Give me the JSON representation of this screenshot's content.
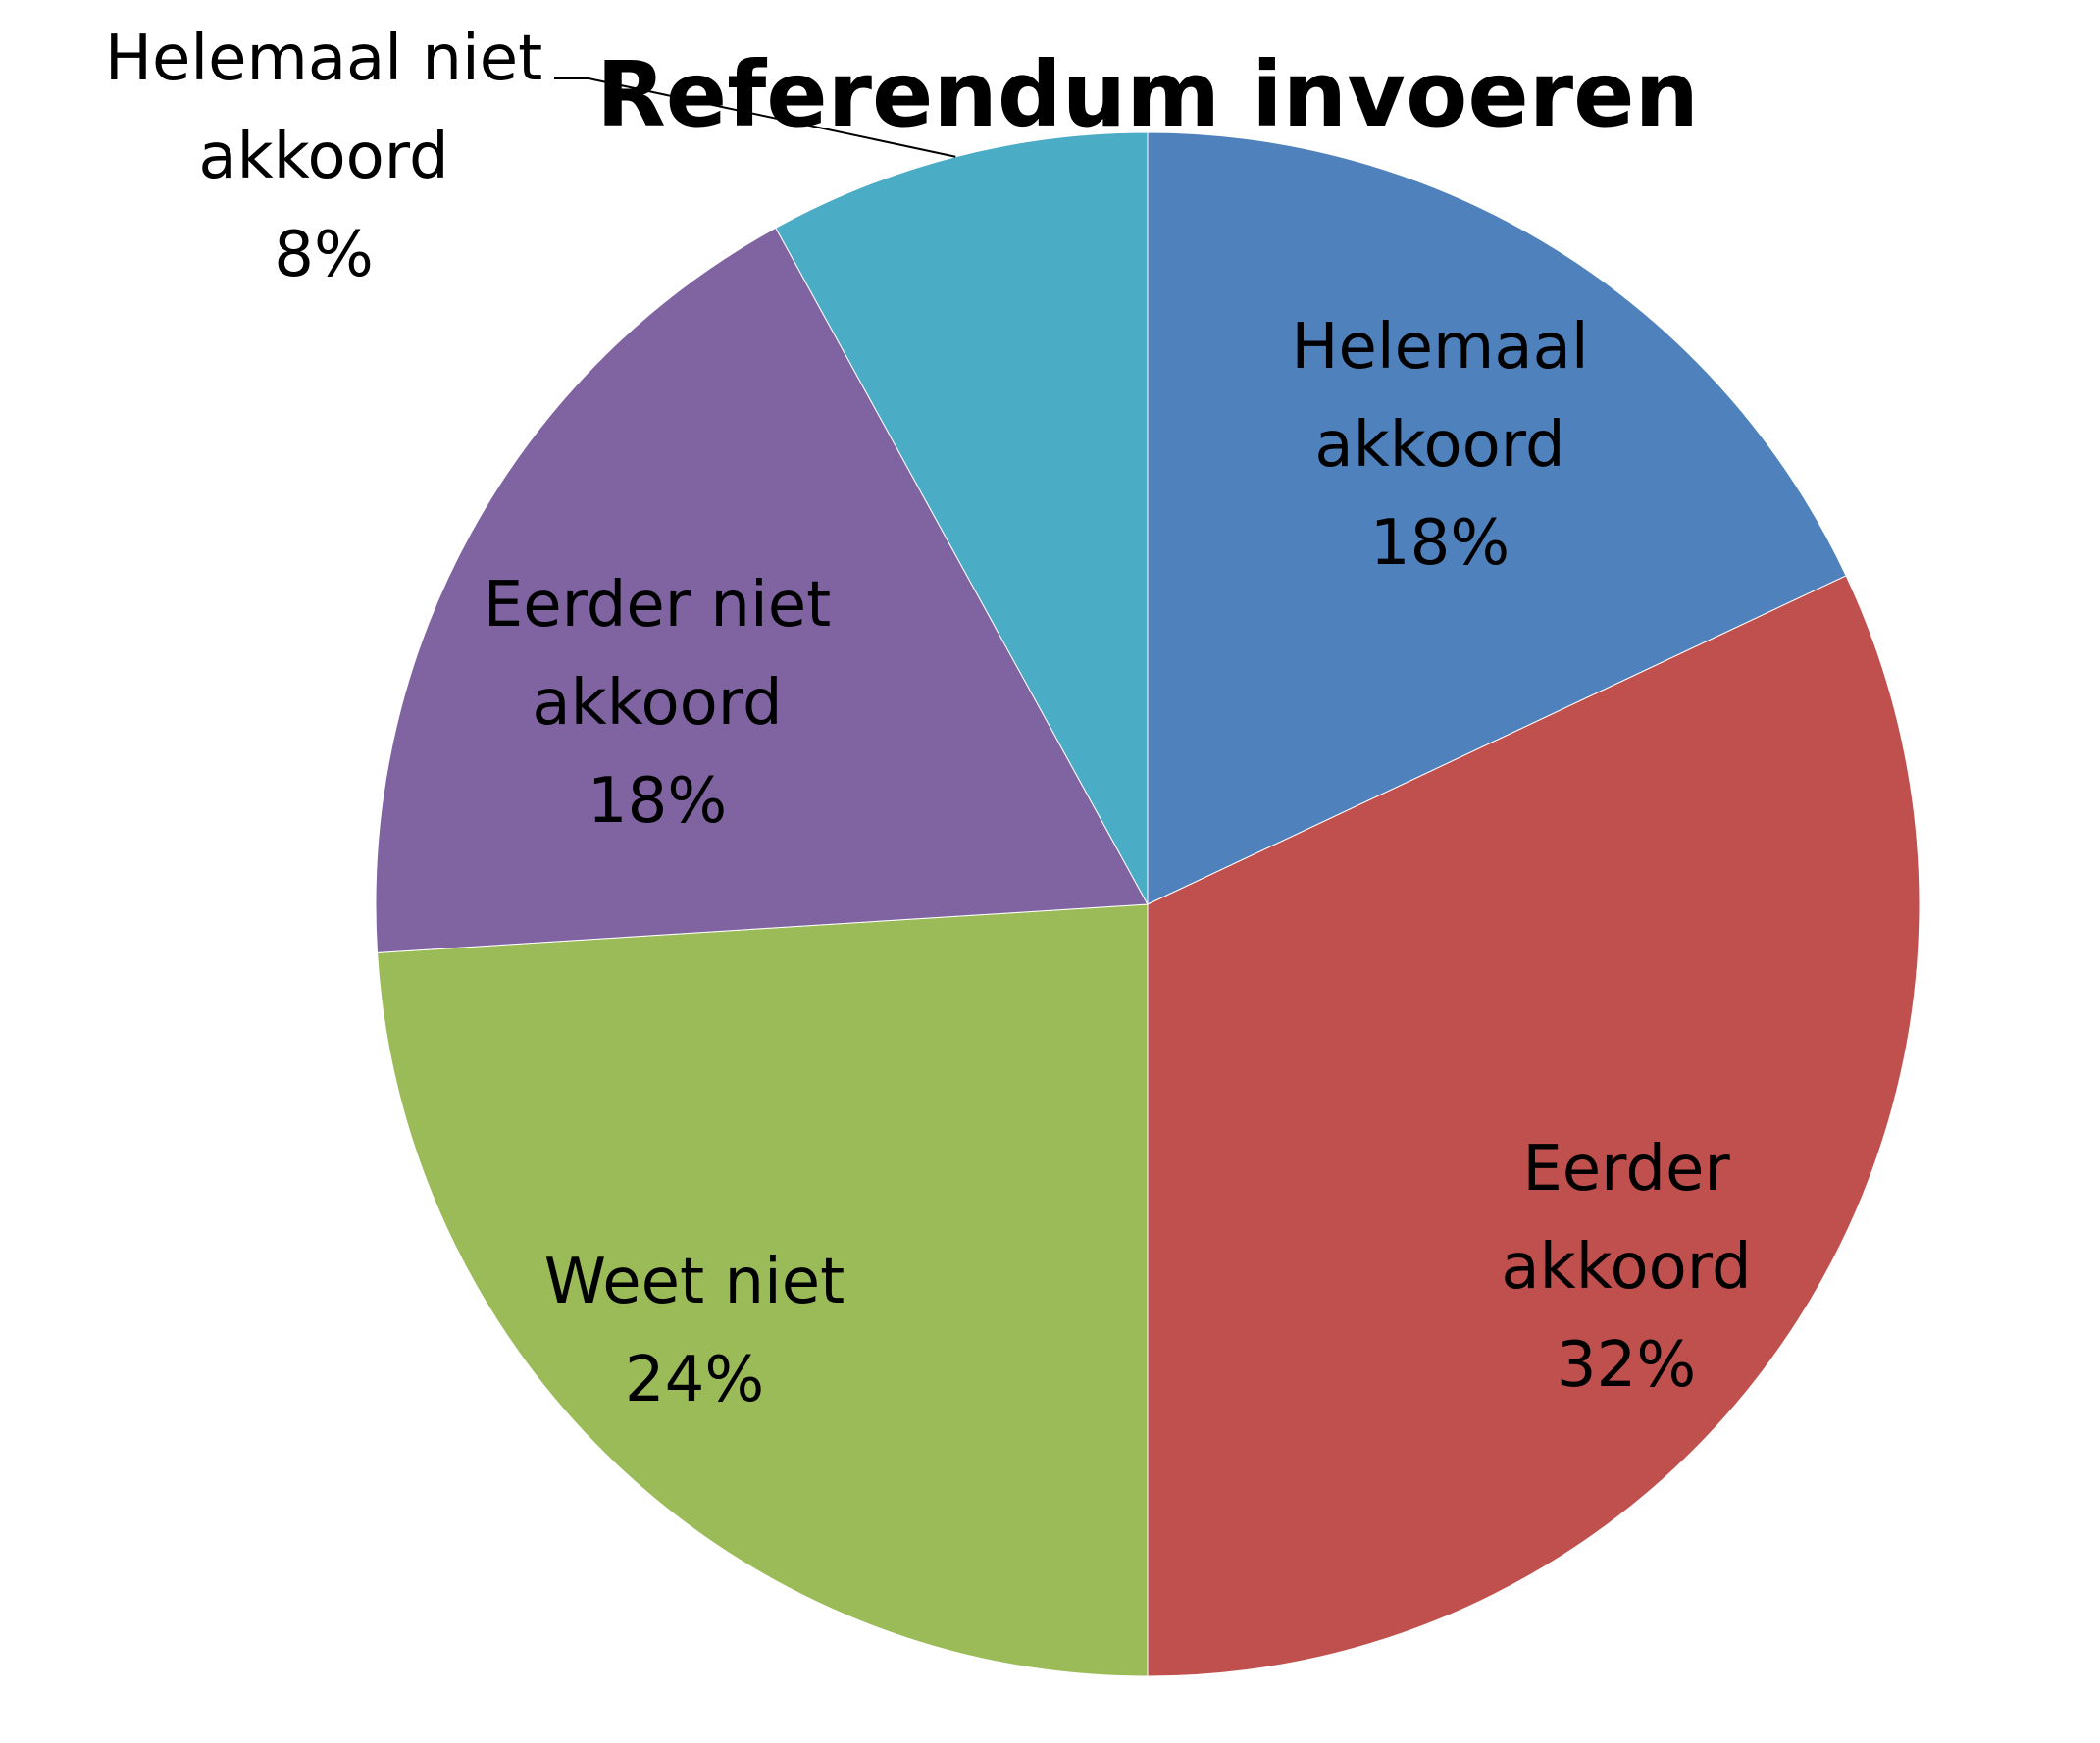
{
  "chart_data": {
    "type": "pie",
    "title": "Referendum invoeren",
    "slices": [
      {
        "label_lines": [
          "Helemaal",
          "akkoord"
        ],
        "value": 18,
        "value_label": "18%",
        "color": "#4F81BD"
      },
      {
        "label_lines": [
          "Eerder",
          "akkoord"
        ],
        "value": 32,
        "value_label": "32%",
        "color": "#C0504D"
      },
      {
        "label_lines": [
          "Weet niet"
        ],
        "value": 24,
        "value_label": "24%",
        "color": "#9BBB59"
      },
      {
        "label_lines": [
          "Eerder niet",
          "akkoord"
        ],
        "value": 18,
        "value_label": "18%",
        "color": "#8064A2"
      },
      {
        "label_lines": [
          "Helemaal niet",
          "akkoord"
        ],
        "value": 8,
        "value_label": "8%",
        "color": "#4BACC6"
      }
    ],
    "start_angle": "12 o'clock",
    "direction": "clockwise",
    "legend": "none"
  }
}
